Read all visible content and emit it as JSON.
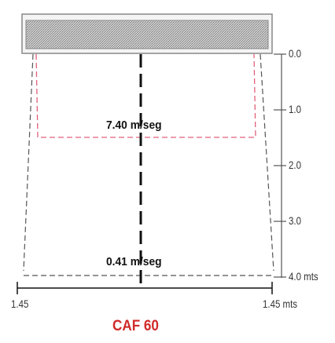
{
  "diagram": {
    "model": "CAF 60",
    "colors": {
      "accent_red": "#d02a2a",
      "dash_gray": "#555555",
      "axis_line": "#111111",
      "diffuser_fill": "#bdbdbd",
      "high_velocity_zone": "#e0607a",
      "low_velocity_zone": "#555555"
    },
    "velocities": [
      {
        "label": "7.40 m/seg"
      },
      {
        "label": "0.41 m/seg"
      }
    ],
    "depth_scale": {
      "ticks": [
        "0.0",
        "1.0",
        "2.0",
        "3.0",
        "4.0 mts"
      ]
    },
    "width_scale": {
      "left": "1.45",
      "right": "1.45 mts"
    }
  }
}
